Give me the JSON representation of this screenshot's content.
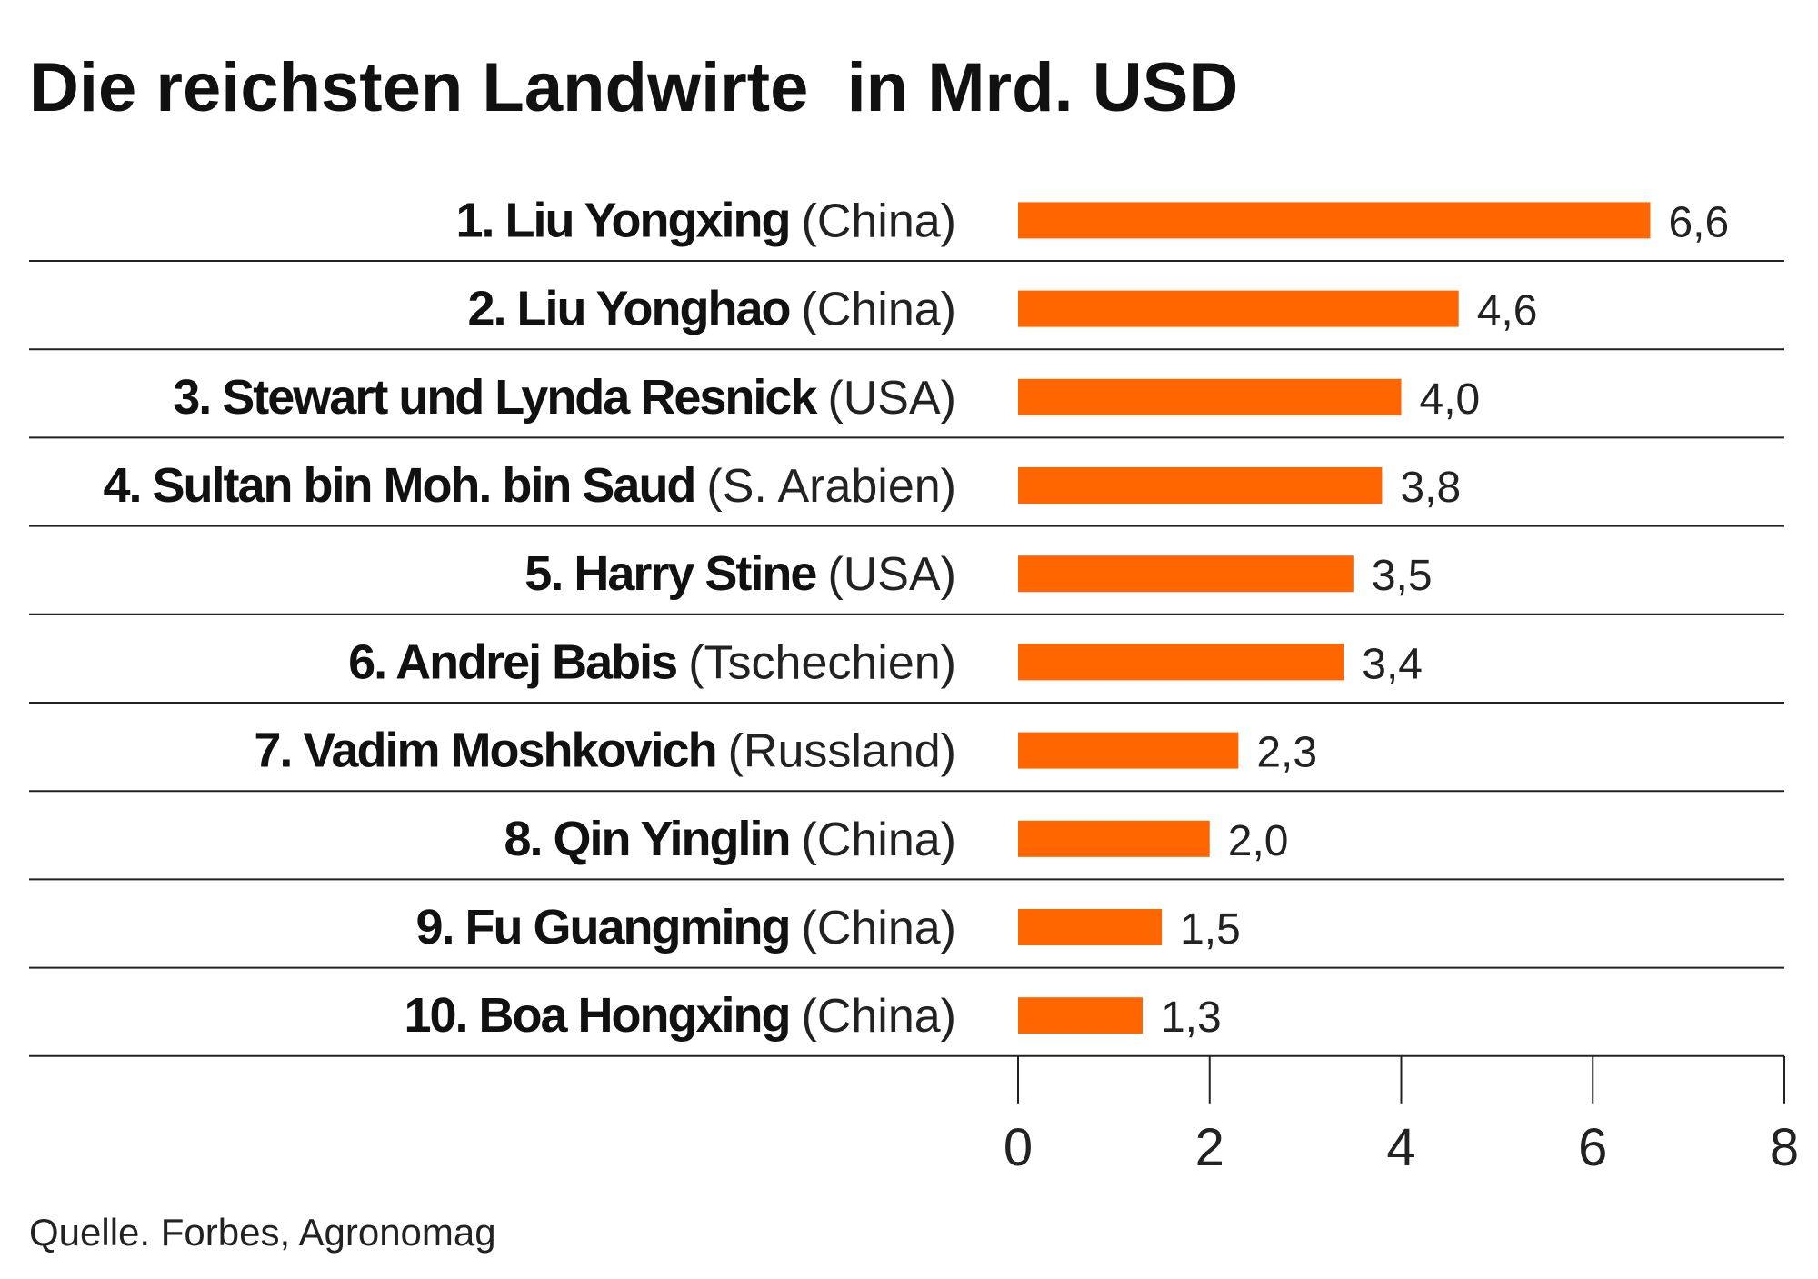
{
  "title": "Die reichsten Landwirte  in Mrd. USD",
  "source": "Quelle. Forbes, Agronomag",
  "colors": {
    "bar": "#ff6600",
    "text": "#111111",
    "rule": "#222222"
  },
  "chart_data": {
    "type": "bar",
    "orientation": "horizontal",
    "categories": [
      "1. Liu Yongxing (China)",
      "2. Liu Yonghao (China)",
      "3. Stewart  und Lynda Resnick (USA)",
      "4. Sultan bin Moh. bin Saud  (S. Arabien)",
      "5. Harry Stine (USA)",
      "6. Andrej Babis (Tschechien)",
      "7. Vadim Moshkovich (Russland)",
      "8.  Qin Yinglin (China)",
      "9. Fu Guangming (China)",
      "10. Boa Hongxing (China)"
    ],
    "rows": [
      {
        "name": "1. Liu Yongxing",
        "country": "(China)",
        "value": 6.6,
        "label": "6,6"
      },
      {
        "name": "2. Liu Yonghao",
        "country": "(China)",
        "value": 4.6,
        "label": "4,6"
      },
      {
        "name": "3. Stewart  und Lynda Resnick",
        "country": "(USA)",
        "value": 4.0,
        "label": "4,0"
      },
      {
        "name": "4. Sultan bin Moh. bin Saud",
        "country": " (S. Arabien)",
        "value": 3.8,
        "label": "3,8"
      },
      {
        "name": "5. Harry Stine",
        "country": "(USA)",
        "value": 3.5,
        "label": "3,5"
      },
      {
        "name": "6. Andrej Babis",
        "country": "(Tschechien)",
        "value": 3.4,
        "label": "3,4"
      },
      {
        "name": "7. Vadim Moshkovich",
        "country": "(Russland)",
        "value": 2.3,
        "label": "2,3"
      },
      {
        "name": "8.  Qin Yinglin",
        "country": "(China)",
        "value": 2.0,
        "label": "2,0"
      },
      {
        "name": "9. Fu Guangming",
        "country": "(China)",
        "value": 1.5,
        "label": "1,5"
      },
      {
        "name": "10. Boa Hongxing",
        "country": "(China)",
        "value": 1.3,
        "label": "1,3"
      }
    ],
    "values": [
      6.6,
      4.6,
      4.0,
      3.8,
      3.5,
      3.4,
      2.3,
      2.0,
      1.5,
      1.3
    ],
    "xlim": [
      0,
      8
    ],
    "xticks": [
      0,
      2,
      4,
      6,
      8
    ],
    "xtick_labels": [
      "0",
      "2",
      "4",
      "6",
      "8"
    ],
    "grid": false,
    "legend": "none",
    "xlabel": "",
    "ylabel": ""
  }
}
